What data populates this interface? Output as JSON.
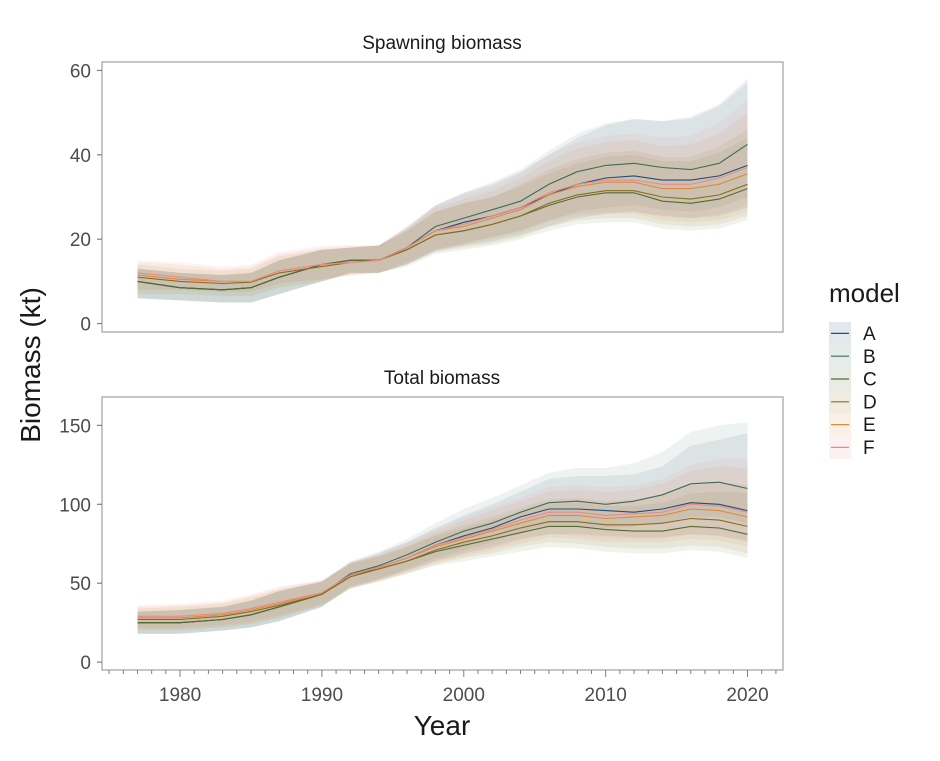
{
  "chart_data": {
    "type": "line",
    "xlabel": "Year",
    "ylabel": "Biomass (kt)",
    "x_ticks": [
      1980,
      1990,
      2000,
      2010,
      2020
    ],
    "xlim": [
      1974.5,
      2022.5
    ],
    "legend": {
      "title": "model",
      "position": "right",
      "entries": [
        "A",
        "B",
        "C",
        "D",
        "E",
        "F"
      ]
    },
    "series_colors": {
      "A": "#1f4e79",
      "B": "#3f6b5b",
      "C": "#556b2f",
      "D": "#8b6d1a",
      "E": "#e0893c",
      "F": "#e88a8a"
    },
    "panels": [
      {
        "title": "Spawning biomass",
        "ylim": [
          -2,
          62
        ],
        "y_ticks": [
          0,
          20,
          40,
          60
        ],
        "x": [
          1977,
          1980,
          1983,
          1985,
          1987,
          1990,
          1992,
          1994,
          1996,
          1998,
          2000,
          2002,
          2004,
          2006,
          2008,
          2010,
          2012,
          2014,
          2016,
          2018,
          2020
        ],
        "series": [
          {
            "name": "A",
            "values": [
              10.0,
              8.5,
              8.0,
              8.5,
              11.0,
              14.0,
              15.0,
              15.0,
              18.0,
              22.0,
              24.0,
              25.5,
              27.5,
              30.5,
              33.0,
              34.5,
              35.0,
              34.0,
              34.0,
              35.0,
              37.5
            ],
            "lower": [
              6.0,
              5.5,
              5.0,
              5.0,
              7.0,
              10.0,
              12.0,
              12.0,
              14.0,
              17.0,
              18.5,
              19.5,
              21.0,
              23.0,
              25.0,
              26.0,
              26.5,
              25.5,
              25.0,
              25.5,
              27.5
            ],
            "upper": [
              13.0,
              12.0,
              11.5,
              12.0,
              15.0,
              17.5,
              18.0,
              18.5,
              23.0,
              28.0,
              31.0,
              33.0,
              36.0,
              40.0,
              44.0,
              47.0,
              48.5,
              48.0,
              49.0,
              52.0,
              58.0
            ]
          },
          {
            "name": "B",
            "values": [
              10.0,
              8.5,
              8.0,
              8.5,
              11.0,
              14.0,
              15.0,
              15.0,
              18.0,
              23.0,
              25.0,
              27.0,
              29.0,
              33.0,
              36.0,
              37.5,
              38.0,
              37.0,
              36.5,
              38.0,
              42.5
            ],
            "lower": [
              6.0,
              5.5,
              5.0,
              5.0,
              7.0,
              10.0,
              12.0,
              12.0,
              14.0,
              17.5,
              19.0,
              20.5,
              22.0,
              24.5,
              26.5,
              27.5,
              28.0,
              27.0,
              26.5,
              27.5,
              30.0
            ],
            "upper": [
              13.0,
              12.0,
              11.5,
              12.0,
              15.0,
              17.5,
              18.0,
              18.5,
              22.5,
              28.0,
              31.0,
              33.5,
              36.5,
              41.0,
              45.0,
              47.5,
              48.5,
              48.0,
              48.5,
              51.5,
              57.0
            ]
          },
          {
            "name": "C",
            "values": [
              10.0,
              8.5,
              8.0,
              8.5,
              11.0,
              14.0,
              15.0,
              15.0,
              17.5,
              21.0,
              22.0,
              23.5,
              25.5,
              28.0,
              30.0,
              31.0,
              31.0,
              29.0,
              28.5,
              29.5,
              32.0
            ],
            "lower": [
              6.0,
              5.5,
              5.0,
              5.0,
              7.0,
              10.0,
              12.0,
              12.0,
              13.5,
              16.5,
              17.5,
              18.5,
              20.0,
              22.0,
              23.5,
              24.0,
              24.0,
              22.5,
              22.0,
              22.5,
              24.5
            ],
            "upper": [
              13.0,
              12.0,
              11.5,
              12.0,
              15.0,
              17.5,
              18.0,
              18.5,
              22.0,
              26.5,
              28.5,
              30.0,
              32.5,
              35.5,
              38.0,
              39.5,
              40.0,
              38.5,
              38.5,
              40.5,
              44.0
            ]
          },
          {
            "name": "D",
            "values": [
              11.0,
              10.0,
              9.5,
              9.8,
              12.0,
              13.5,
              14.5,
              15.0,
              17.5,
              21.0,
              22.0,
              23.5,
              25.5,
              28.5,
              30.5,
              31.5,
              31.5,
              30.0,
              29.5,
              30.5,
              33.0
            ],
            "lower": [
              7.0,
              7.0,
              6.5,
              6.5,
              8.5,
              10.0,
              11.5,
              12.0,
              14.0,
              17.0,
              18.0,
              19.0,
              20.5,
              23.0,
              24.5,
              25.0,
              25.0,
              23.5,
              23.0,
              23.5,
              25.5
            ],
            "upper": [
              14.0,
              13.0,
              12.5,
              13.0,
              16.0,
              17.5,
              18.0,
              18.5,
              22.0,
              26.5,
              28.5,
              30.0,
              33.0,
              36.5,
              39.0,
              40.5,
              41.0,
              39.5,
              39.5,
              42.0,
              46.0
            ]
          },
          {
            "name": "E",
            "values": [
              11.5,
              10.5,
              10.0,
              10.0,
              12.5,
              14.0,
              14.5,
              15.0,
              18.0,
              22.0,
              23.0,
              25.0,
              27.0,
              30.5,
              32.5,
              33.5,
              33.5,
              32.0,
              32.0,
              33.0,
              35.5
            ],
            "lower": [
              8.0,
              8.0,
              7.5,
              7.5,
              9.5,
              10.5,
              11.5,
              12.0,
              14.5,
              17.5,
              18.5,
              20.0,
              21.5,
              24.0,
              25.5,
              26.0,
              26.0,
              24.5,
              24.0,
              24.5,
              26.5
            ],
            "upper": [
              14.5,
              14.0,
              13.0,
              13.5,
              16.5,
              18.0,
              18.5,
              18.5,
              22.5,
              27.5,
              29.5,
              31.5,
              34.5,
              38.5,
              41.5,
              43.0,
              43.5,
              42.0,
              42.5,
              45.0,
              50.0
            ]
          },
          {
            "name": "F",
            "values": [
              12.0,
              11.0,
              10.0,
              10.0,
              12.5,
              14.0,
              14.5,
              15.0,
              18.0,
              22.0,
              23.5,
              25.5,
              27.5,
              31.0,
              33.0,
              34.0,
              34.0,
              33.0,
              33.0,
              34.5,
              37.0
            ],
            "lower": [
              8.0,
              8.0,
              7.5,
              7.5,
              9.5,
              10.5,
              11.5,
              12.0,
              14.5,
              17.5,
              19.0,
              20.5,
              22.0,
              24.5,
              26.0,
              26.5,
              26.5,
              25.5,
              25.0,
              26.0,
              28.0
            ],
            "upper": [
              15.0,
              14.5,
              13.5,
              14.0,
              17.0,
              18.5,
              18.5,
              18.5,
              23.0,
              28.0,
              30.5,
              32.5,
              35.5,
              40.0,
              43.0,
              44.5,
              45.0,
              44.0,
              44.5,
              47.5,
              53.0
            ]
          }
        ]
      },
      {
        "title": "Total biomass",
        "ylim": [
          -5,
          168
        ],
        "y_ticks": [
          0,
          50,
          100,
          150
        ],
        "x": [
          1977,
          1980,
          1983,
          1985,
          1987,
          1990,
          1992,
          1994,
          1996,
          1998,
          2000,
          2002,
          2004,
          2006,
          2008,
          2010,
          2012,
          2014,
          2016,
          2018,
          2020
        ],
        "series": [
          {
            "name": "A",
            "values": [
              25,
              25,
              27,
              30,
              35,
              43,
              55,
              60,
              66,
              74,
              80,
              85,
              92,
              97,
              97,
              96,
              95,
              97,
              101,
              100,
              96
            ],
            "lower": [
              18,
              18,
              20,
              22,
              26,
              35,
              47,
              52,
              58,
              64,
              69,
              73,
              78,
              81,
              81,
              80,
              79,
              79,
              81,
              80,
              77
            ],
            "upper": [
              32,
              33,
              35,
              39,
              45,
              51,
              63,
              69,
              76,
              85,
              93,
              100,
              108,
              116,
              118,
              118,
              119,
              124,
              137,
              141,
              145
            ]
          },
          {
            "name": "B",
            "values": [
              25,
              25,
              27,
              30,
              35,
              43,
              56,
              61,
              68,
              76,
              83,
              88,
              95,
              101,
              102,
              100,
              102,
              106,
              113,
              114,
              110
            ],
            "lower": [
              18,
              18,
              20,
              22,
              26,
              35,
              48,
              53,
              59,
              66,
              71,
              76,
              82,
              86,
              86,
              85,
              86,
              88,
              92,
              92,
              88
            ],
            "upper": [
              32,
              33,
              35,
              39,
              45,
              51,
              64,
              70,
              78,
              88,
              97,
              104,
              112,
              120,
              123,
              123,
              126,
              133,
              146,
              150,
              152
            ]
          },
          {
            "name": "C",
            "values": [
              25,
              25,
              27,
              30,
              35,
              43,
              55,
              59,
              64,
              70,
              74,
              78,
              82,
              86,
              86,
              84,
              83,
              83,
              86,
              85,
              81
            ],
            "lower": [
              18,
              18,
              20,
              22,
              26,
              35,
              47,
              51,
              56,
              61,
              64,
              67,
              70,
              73,
              72,
              70,
              69,
              69,
              71,
              70,
              66
            ],
            "upper": [
              32,
              33,
              35,
              39,
              45,
              51,
              63,
              67,
              73,
              80,
              85,
              90,
              95,
              100,
              101,
              99,
              99,
              101,
              107,
              108,
              107
            ]
          },
          {
            "name": "D",
            "values": [
              27,
              27,
              29,
              32,
              36,
              43,
              54,
              59,
              64,
              71,
              76,
              80,
              85,
              89,
              89,
              87,
              87,
              88,
              91,
              90,
              86
            ],
            "lower": [
              20,
              20,
              22,
              24,
              28,
              36,
              46,
              51,
              56,
              62,
              66,
              69,
              73,
              76,
              75,
              73,
              72,
              72,
              74,
              73,
              69
            ],
            "upper": [
              34,
              35,
              37,
              41,
              46,
              51,
              62,
              67,
              73,
              81,
              87,
              92,
              98,
              103,
              104,
              102,
              103,
              106,
              112,
              114,
              112
            ]
          },
          {
            "name": "E",
            "values": [
              28,
              28,
              30,
              33,
              37,
              44,
              55,
              60,
              66,
              73,
              78,
              83,
              88,
              93,
              93,
              91,
              92,
              93,
              97,
              96,
              92
            ],
            "lower": [
              21,
              21,
              23,
              25,
              29,
              36,
              47,
              52,
              57,
              63,
              67,
              71,
              75,
              79,
              78,
              76,
              76,
              76,
              78,
              77,
              73
            ],
            "upper": [
              35,
              36,
              38,
              42,
              47,
              52,
              63,
              68,
              75,
              83,
              90,
              96,
              102,
              108,
              109,
              108,
              109,
              113,
              121,
              124,
              123
            ]
          },
          {
            "name": "F",
            "values": [
              29,
              29,
              31,
              34,
              38,
              44,
              55,
              60,
              66,
              74,
              79,
              84,
              90,
              95,
              95,
              93,
              94,
              95,
              100,
              99,
              95
            ],
            "lower": [
              22,
              22,
              24,
              26,
              30,
              37,
              47,
              52,
              58,
              64,
              68,
              72,
              77,
              81,
              80,
              78,
              78,
              78,
              81,
              80,
              76
            ],
            "upper": [
              36,
              37,
              39,
              43,
              48,
              52,
              63,
              69,
              76,
              84,
              92,
              98,
              104,
              111,
              112,
              111,
              112,
              116,
              125,
              129,
              129
            ]
          }
        ]
      }
    ]
  }
}
